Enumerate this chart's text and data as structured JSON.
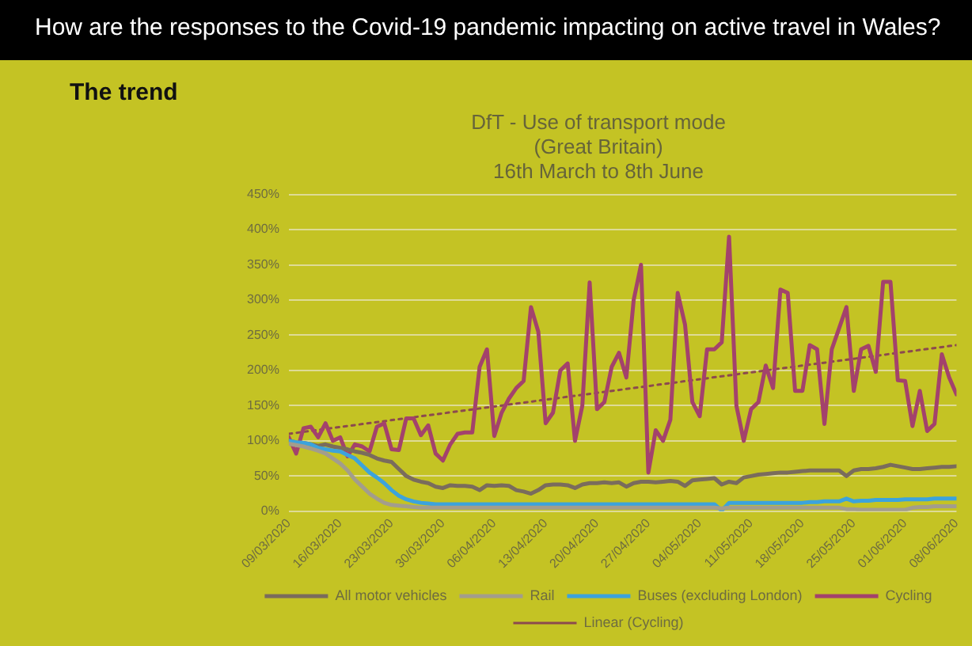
{
  "chart_data": {
    "type": "line",
    "title": "DfT - Use of transport mode\n(Great Britain)\n16th March to 8th June",
    "annotations": [
      "How are the responses to the Covid-19 pandemic impacting on active travel in Wales?",
      "The trend"
    ],
    "categories": [
      "09/03/2020",
      null,
      null,
      null,
      null,
      null,
      null,
      "16/03/2020",
      null,
      null,
      null,
      null,
      null,
      null,
      "23/03/2020",
      null,
      null,
      null,
      null,
      null,
      null,
      "30/03/2020",
      null,
      null,
      null,
      null,
      null,
      null,
      "06/04/2020",
      null,
      null,
      null,
      null,
      null,
      null,
      "13/04/2020",
      null,
      null,
      null,
      null,
      null,
      null,
      "20/04/2020",
      null,
      null,
      null,
      null,
      null,
      null,
      "27/04/2020",
      null,
      null,
      null,
      null,
      null,
      null,
      "04/05/2020",
      null,
      null,
      null,
      null,
      null,
      null,
      "11/05/2020",
      null,
      null,
      null,
      null,
      null,
      null,
      "18/05/2020",
      null,
      null,
      null,
      null,
      null,
      null,
      "25/05/2020",
      null,
      null,
      null,
      null,
      null,
      null,
      "01/06/2020",
      null,
      null,
      null,
      null,
      null,
      null,
      "08/06/2020"
    ],
    "series": [
      {
        "name": "All motor vehicles",
        "color": "#7a6c5c",
        "values": [
          100,
          98,
          97,
          95,
          93,
          95,
          92,
          90,
          88,
          85,
          83,
          80,
          75,
          72,
          70,
          60,
          50,
          45,
          42,
          40,
          35,
          33,
          37,
          36,
          36,
          35,
          30,
          37,
          36,
          37,
          36,
          30,
          28,
          25,
          30,
          37,
          38,
          38,
          37,
          33,
          38,
          40,
          40,
          41,
          40,
          41,
          35,
          40,
          42,
          42,
          41,
          42,
          43,
          42,
          36,
          44,
          45,
          46,
          47,
          38,
          42,
          40,
          48,
          50,
          52,
          53,
          54,
          55,
          55,
          56,
          57,
          58,
          58,
          58,
          58,
          58,
          50,
          58,
          60,
          60,
          61,
          63,
          66,
          64,
          62,
          60,
          60,
          61,
          62,
          63,
          63,
          64
        ]
      },
      {
        "name": "Rail",
        "color": "#a39d8c",
        "values": [
          96,
          94,
          92,
          89,
          86,
          82,
          75,
          68,
          58,
          45,
          35,
          25,
          18,
          12,
          9,
          8,
          7,
          6,
          5,
          5,
          5,
          5,
          5,
          5,
          5,
          5,
          5,
          5,
          5,
          5,
          5,
          5,
          5,
          5,
          5,
          5,
          5,
          5,
          5,
          5,
          5,
          5,
          5,
          5,
          5,
          5,
          5,
          5,
          5,
          5,
          5,
          5,
          5,
          5,
          5,
          5,
          5,
          5,
          5,
          4,
          5,
          5,
          5,
          5,
          5,
          5,
          5,
          5,
          5,
          5,
          5,
          5,
          5,
          5,
          5,
          5,
          3,
          3,
          2,
          2,
          2,
          2,
          2,
          2,
          2,
          5,
          6,
          6,
          7,
          7,
          7,
          7
        ]
      },
      {
        "name": "Buses (excluding London)",
        "color": "#3ca3dc",
        "values": [
          100,
          98,
          97,
          95,
          90,
          88,
          86,
          85,
          80,
          75,
          65,
          55,
          48,
          40,
          30,
          22,
          17,
          14,
          12,
          11,
          10,
          10,
          10,
          10,
          10,
          10,
          10,
          10,
          10,
          10,
          10,
          10,
          10,
          10,
          10,
          10,
          10,
          10,
          10,
          10,
          10,
          10,
          10,
          10,
          10,
          10,
          10,
          10,
          10,
          10,
          10,
          10,
          10,
          10,
          10,
          10,
          10,
          10,
          10,
          1,
          12,
          12,
          12,
          12,
          12,
          12,
          12,
          12,
          12,
          12,
          12,
          13,
          13,
          14,
          14,
          14,
          18,
          14,
          15,
          15,
          16,
          16,
          16,
          16,
          17,
          17,
          17,
          17,
          18,
          18,
          18,
          18
        ]
      },
      {
        "name": "Cycling",
        "color": "#a3426c",
        "values": [
          105,
          82,
          118,
          120,
          105,
          125,
          100,
          105,
          78,
          95,
          92,
          85,
          120,
          125,
          88,
          87,
          132,
          132,
          108,
          122,
          82,
          72,
          95,
          110,
          112,
          112,
          205,
          230,
          107,
          140,
          160,
          175,
          185,
          290,
          255,
          125,
          140,
          200,
          210,
          100,
          150,
          325,
          145,
          155,
          205,
          225,
          190,
          300,
          350,
          55,
          115,
          100,
          130,
          310,
          265,
          155,
          135,
          230,
          230,
          240,
          390,
          150,
          100,
          145,
          155,
          207,
          175,
          315,
          310,
          171,
          171,
          236,
          230,
          124,
          230,
          260,
          290,
          171,
          230,
          235,
          198,
          326,
          326,
          186,
          185,
          121,
          171,
          114,
          124,
          223,
          190,
          166
        ]
      },
      {
        "name": "Linear (Cycling)",
        "type": "line",
        "line_style": "dotted",
        "color": "#8c4a4e",
        "x": [
          "09/03/2020",
          "08/06/2020"
        ],
        "values": [
          110,
          236
        ]
      }
    ],
    "ylim": [
      0,
      450
    ],
    "yticks": [
      {
        "value": 0,
        "label": "0%"
      },
      {
        "value": 50,
        "label": "50%"
      },
      {
        "value": 100,
        "label": "100%"
      },
      {
        "value": 150,
        "label": "150%"
      },
      {
        "value": 200,
        "label": "200%"
      },
      {
        "value": 250,
        "label": "250%"
      },
      {
        "value": 300,
        "label": "300%"
      },
      {
        "value": 350,
        "label": "350%"
      },
      {
        "value": 400,
        "label": "400%"
      },
      {
        "value": 450,
        "label": "450%"
      }
    ],
    "grid": "y",
    "legend": "bottom",
    "marker": "none",
    "line_style": "solid"
  }
}
